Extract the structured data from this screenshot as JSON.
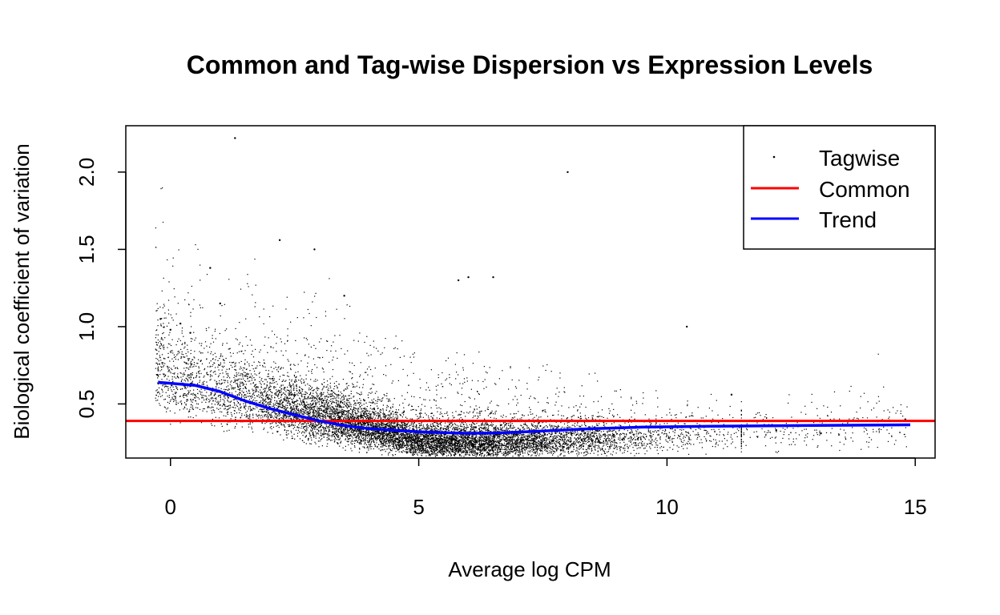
{
  "chart_data": {
    "type": "scatter",
    "title": "Common and Tag-wise Dispersion vs Expression Levels",
    "xlabel": "Average log CPM",
    "ylabel": "Biological coefficient of variation",
    "xlim": [
      -0.9,
      15.4
    ],
    "ylim": [
      0.15,
      2.3
    ],
    "x_ticks": [
      0,
      5,
      10,
      15
    ],
    "x_tick_labels": [
      "0",
      "5",
      "10",
      "15"
    ],
    "y_ticks": [
      0.5,
      1.0,
      1.5,
      2.0
    ],
    "y_tick_labels": [
      "0.5",
      "1.0",
      "1.5",
      "2.0"
    ],
    "grid": false,
    "legend_position": "top-right",
    "series": [
      {
        "name": "Tagwise",
        "kind": "points",
        "color": "#000000",
        "description_values": "dense cloud of per-gene BCV points, approximately 15000 genes",
        "x": [
          -0.2,
          0.0,
          0.2,
          0.4,
          0.8,
          1.0,
          1.3,
          2.2,
          2.9,
          3.5,
          5.8,
          6.0,
          6.5,
          8.0,
          10.4,
          14.8,
          12.2,
          13.1,
          11.3
        ],
        "y": [
          1.05,
          0.98,
          1.02,
          0.96,
          1.38,
          1.15,
          2.22,
          1.56,
          1.5,
          1.2,
          1.3,
          1.32,
          1.32,
          2.0,
          1.0,
          0.4,
          0.33,
          0.31,
          0.56
        ]
      },
      {
        "name": "Common",
        "kind": "hline",
        "color": "#ff0000",
        "y": 0.39
      },
      {
        "name": "Trend",
        "kind": "line",
        "color": "#0000ff",
        "x": [
          -0.25,
          0.5,
          1.0,
          1.5,
          2.0,
          2.5,
          3.0,
          3.5,
          4.0,
          4.5,
          5.0,
          5.5,
          6.0,
          6.5,
          7.0,
          7.5,
          8.0,
          8.5,
          9.0,
          9.5,
          10.0,
          11.0,
          12.0,
          13.0,
          14.0,
          14.9
        ],
        "y": [
          0.64,
          0.62,
          0.58,
          0.52,
          0.47,
          0.43,
          0.39,
          0.36,
          0.34,
          0.33,
          0.32,
          0.315,
          0.31,
          0.312,
          0.318,
          0.325,
          0.333,
          0.34,
          0.345,
          0.35,
          0.352,
          0.356,
          0.359,
          0.361,
          0.363,
          0.365
        ]
      }
    ]
  }
}
